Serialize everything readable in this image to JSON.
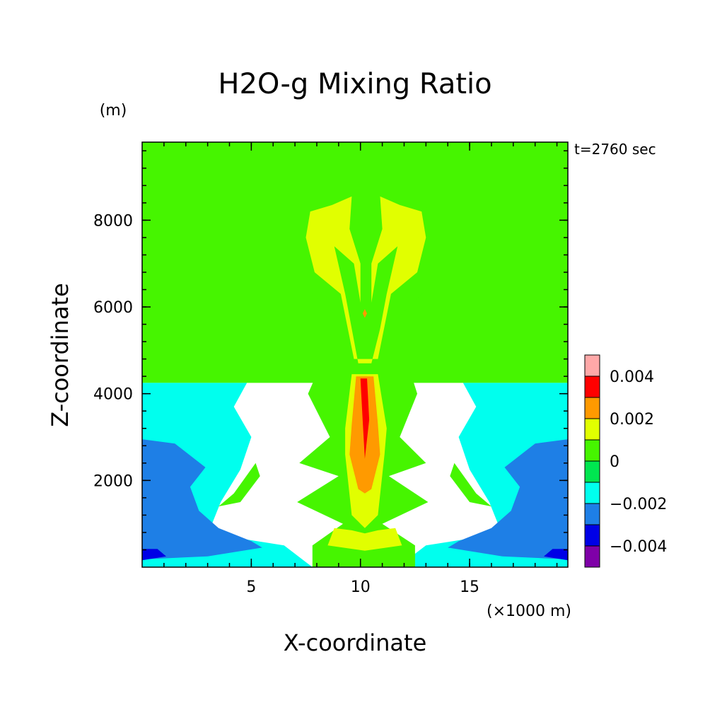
{
  "chart_data": {
    "type": "heatmap",
    "title": "H2O-g Mixing Ratio",
    "xlabel": "X-coordinate",
    "ylabel": "Z-coordinate",
    "x_unit": "(×1000 m)",
    "y_unit": "(m)",
    "time_label": "t=2760 sec",
    "xlim": [
      0,
      19.5
    ],
    "ylim": [
      0,
      9800
    ],
    "xticks": [
      5,
      10,
      15
    ],
    "xtick_labels": [
      "5",
      "10",
      "15"
    ],
    "yticks": [
      2000,
      4000,
      6000,
      8000
    ],
    "ytick_labels": [
      "2000",
      "4000",
      "6000",
      "8000"
    ],
    "colorbar": {
      "levels": [
        -0.005,
        -0.004,
        -0.003,
        -0.002,
        -0.001,
        0,
        0.001,
        0.002,
        0.003,
        0.004,
        0.005
      ],
      "colors": [
        "#7f00a8",
        "#0000e6",
        "#1e7fe6",
        "#00ffee",
        "#00e650",
        "#46f500",
        "#e1ff00",
        "#ff9a00",
        "#ff0000",
        "#ffa8a8"
      ],
      "tick_values": [
        -0.004,
        -0.002,
        0,
        0.002,
        0.004
      ],
      "tick_labels": [
        "−0.004",
        "−0.002",
        "0",
        "0.002",
        "0.004"
      ]
    },
    "regions": [
      {
        "level": 0.0005,
        "polygon": [
          [
            0,
            9800
          ],
          [
            19.5,
            9800
          ],
          [
            19.5,
            4250
          ],
          [
            0,
            4250
          ]
        ]
      },
      {
        "level": -0.0015,
        "polygon": [
          [
            0,
            4250
          ],
          [
            4.8,
            4250
          ],
          [
            4.2,
            3700
          ],
          [
            5.0,
            3000
          ],
          [
            4.5,
            2250
          ],
          [
            3.6,
            1500
          ],
          [
            3.2,
            1000
          ],
          [
            4.0,
            700
          ],
          [
            6.5,
            500
          ],
          [
            7.8,
            0
          ],
          [
            11.7,
            0
          ],
          [
            13.0,
            500
          ],
          [
            15.5,
            700
          ],
          [
            16.3,
            1000
          ],
          [
            15.9,
            1500
          ],
          [
            15.0,
            2250
          ],
          [
            14.5,
            3000
          ],
          [
            15.3,
            3700
          ],
          [
            14.7,
            4250
          ],
          [
            19.5,
            4250
          ],
          [
            19.5,
            0
          ],
          [
            0,
            0
          ]
        ]
      },
      {
        "level": -0.0025,
        "polygon": [
          [
            0,
            2950
          ],
          [
            1.5,
            2850
          ],
          [
            2.9,
            2300
          ],
          [
            2.2,
            1850
          ],
          [
            2.6,
            1300
          ],
          [
            3.5,
            900
          ],
          [
            5.0,
            600
          ],
          [
            5.5,
            450
          ],
          [
            3.0,
            250
          ],
          [
            0,
            180
          ]
        ]
      },
      {
        "level": -0.0025,
        "polygon": [
          [
            19.5,
            2950
          ],
          [
            18.0,
            2850
          ],
          [
            16.6,
            2300
          ],
          [
            17.3,
            1850
          ],
          [
            16.9,
            1300
          ],
          [
            16.0,
            900
          ],
          [
            14.5,
            600
          ],
          [
            14.0,
            450
          ],
          [
            16.5,
            250
          ],
          [
            19.5,
            180
          ]
        ]
      },
      {
        "level": -0.0035,
        "polygon": [
          [
            0,
            420
          ],
          [
            0.7,
            420
          ],
          [
            1.1,
            250
          ],
          [
            0,
            160
          ]
        ]
      },
      {
        "level": -0.0035,
        "polygon": [
          [
            19.5,
            420
          ],
          [
            18.8,
            420
          ],
          [
            18.4,
            250
          ],
          [
            19.5,
            160
          ]
        ]
      },
      {
        "level": 0.0005,
        "polygon": [
          [
            6.7,
            9800
          ],
          [
            13.1,
            9800
          ],
          [
            12.9,
            8600
          ],
          [
            13.4,
            7500
          ],
          [
            13.0,
            6400
          ],
          [
            11.8,
            5800
          ],
          [
            12.1,
            4800
          ],
          [
            12.6,
            4000
          ],
          [
            11.8,
            3000
          ],
          [
            13.0,
            2400
          ],
          [
            11.3,
            2100
          ],
          [
            13.1,
            1500
          ],
          [
            11.0,
            1000
          ],
          [
            12.5,
            500
          ],
          [
            12.5,
            0
          ],
          [
            7.8,
            0
          ],
          [
            7.8,
            500
          ],
          [
            9.2,
            1000
          ],
          [
            7.1,
            1500
          ],
          [
            9.0,
            2100
          ],
          [
            7.2,
            2400
          ],
          [
            8.6,
            3000
          ],
          [
            7.6,
            4000
          ],
          [
            8.3,
            4800
          ],
          [
            8.9,
            5800
          ],
          [
            7.6,
            6400
          ],
          [
            6.9,
            7500
          ],
          [
            7.2,
            8600
          ]
        ]
      },
      {
        "level": 0.0005,
        "polygon": [
          [
            3.5,
            1400
          ],
          [
            4.2,
            1700
          ],
          [
            5.2,
            2400
          ],
          [
            5.4,
            2100
          ],
          [
            4.5,
            1500
          ]
        ]
      },
      {
        "level": 0.0005,
        "polygon": [
          [
            16.0,
            1400
          ],
          [
            15.3,
            1700
          ],
          [
            14.3,
            2400
          ],
          [
            14.1,
            2100
          ],
          [
            15.0,
            1500
          ]
        ]
      },
      {
        "level": 0.0015,
        "polygon": [
          [
            7.5,
            7600
          ],
          [
            7.7,
            8200
          ],
          [
            8.7,
            8350
          ],
          [
            9.6,
            8550
          ],
          [
            9.5,
            7800
          ],
          [
            10.0,
            7000
          ],
          [
            10.0,
            6100
          ],
          [
            9.7,
            7000
          ],
          [
            8.8,
            7400
          ],
          [
            9.3,
            6300
          ],
          [
            9.6,
            5500
          ],
          [
            9.9,
            4700
          ],
          [
            10.5,
            4700
          ],
          [
            10.9,
            5500
          ],
          [
            11.2,
            6300
          ],
          [
            11.7,
            7400
          ],
          [
            10.8,
            7000
          ],
          [
            10.5,
            6100
          ],
          [
            10.5,
            7000
          ],
          [
            11.0,
            7800
          ],
          [
            10.9,
            8550
          ],
          [
            11.8,
            8350
          ],
          [
            12.8,
            8200
          ],
          [
            13.0,
            7600
          ],
          [
            12.6,
            6800
          ],
          [
            11.4,
            6300
          ],
          [
            10.8,
            4800
          ],
          [
            9.7,
            4800
          ],
          [
            9.1,
            6300
          ],
          [
            7.9,
            6800
          ]
        ]
      },
      {
        "level": 0.0015,
        "polygon": [
          [
            9.6,
            4450
          ],
          [
            10.8,
            4450
          ],
          [
            11.2,
            3200
          ],
          [
            11.1,
            2600
          ],
          [
            10.8,
            1200
          ],
          [
            10.2,
            900
          ],
          [
            9.6,
            1200
          ],
          [
            9.3,
            2600
          ],
          [
            9.3,
            3200
          ]
        ]
      },
      {
        "level": 0.0015,
        "polygon": [
          [
            8.5,
            500
          ],
          [
            8.8,
            900
          ],
          [
            9.6,
            850
          ],
          [
            10.2,
            780
          ],
          [
            10.8,
            850
          ],
          [
            11.6,
            900
          ],
          [
            11.9,
            500
          ],
          [
            10.2,
            380
          ]
        ]
      },
      {
        "level": 0.0025,
        "polygon": [
          [
            9.8,
            4400
          ],
          [
            10.6,
            4400
          ],
          [
            10.8,
            3300
          ],
          [
            10.9,
            2600
          ],
          [
            10.5,
            1800
          ],
          [
            10.2,
            1700
          ],
          [
            9.9,
            1800
          ],
          [
            9.5,
            2600
          ],
          [
            9.6,
            3300
          ]
        ]
      },
      {
        "level": 0.0035,
        "polygon": [
          [
            10.0,
            4350
          ],
          [
            10.3,
            4350
          ],
          [
            10.4,
            3400
          ],
          [
            10.2,
            2500
          ],
          [
            10.1,
            3400
          ]
        ]
      },
      {
        "level": 0.0025,
        "polygon": [
          [
            10.1,
            5850
          ],
          [
            10.2,
            5950
          ],
          [
            10.3,
            5850
          ],
          [
            10.2,
            5750
          ]
        ]
      }
    ]
  }
}
